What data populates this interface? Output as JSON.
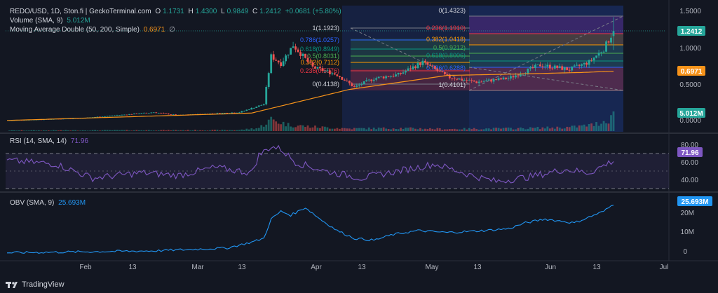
{
  "header": {
    "symbol": "REDO/USD, 1D, Ston.fi | GeckoTerminal.com",
    "open_label": "O",
    "open": "1.1731",
    "high_label": "H",
    "high": "1.4300",
    "low_label": "L",
    "low": "0.9849",
    "close_label": "C",
    "close": "1.2412",
    "change": "+0.0681 (+5.80%)"
  },
  "indicators": {
    "volume": {
      "label": "Volume (SMA, 9)",
      "value": "5.012M"
    },
    "ma": {
      "label": "Moving Average Double (50, 200, Simple)",
      "value": "0.6971",
      "suffix": "∅"
    },
    "rsi": {
      "label": "RSI (14, SMA, 14)",
      "value": "71.96"
    },
    "obv": {
      "label": "OBV (SMA, 9)",
      "value": "25.693M"
    }
  },
  "price_axis": {
    "ticks": [
      "1.5000",
      "1.0000",
      "0.5000",
      "0.0000"
    ],
    "last_price": "1.2412",
    "ma_value": "0.6971",
    "volume_badge": "5.012M"
  },
  "rsi_axis": {
    "ticks": [
      "80.00",
      "60.00",
      "40.00"
    ],
    "value": "71.96"
  },
  "obv_axis": {
    "ticks": [
      "20M",
      "10M",
      "0"
    ],
    "value": "25.693M"
  },
  "time_axis": [
    "Feb",
    "13",
    "Mar",
    "13",
    "Apr",
    "13",
    "May",
    "13",
    "Jun",
    "13",
    "Jul"
  ],
  "fib_left": {
    "levels": [
      "1(1.1923)",
      "0.786(1.0257)",
      "0.618(0.8949)",
      "0.5(0.8031)",
      "0.382(0.7112)",
      "0.236(0.5976)",
      "0(0.4138)"
    ]
  },
  "fib_right": {
    "levels": [
      "0(1.4323)",
      "0.236(1.1910)",
      "0.382(1.0418)",
      "0.5(0.9212)",
      "0.618(0.8006)",
      "0.786(0.6288)",
      "1(0.4101)"
    ]
  },
  "brand": "TradingView",
  "colors": {
    "bg": "#131722",
    "up": "#26a69a",
    "down": "#ef5350",
    "ma": "#f7931a",
    "rsi": "#7e57c2",
    "obv": "#2196f3",
    "fib_red": "#f23645",
    "fib_orange": "#ff9800",
    "fib_green": "#4caf50",
    "fib_teal": "#089981",
    "fib_gray": "#787b86",
    "fib_blue": "#2962ff"
  },
  "chart_data": {
    "type": "candlestick",
    "title": "REDO/USD, 1D, Ston.fi | GeckoTerminal.com",
    "x_range": [
      "2024-01-20",
      "2024-06-20"
    ],
    "last_candle": {
      "open": 1.1731,
      "high": 1.43,
      "low": 0.9849,
      "close": 1.2412
    },
    "price_ylim": [
      0,
      1.5
    ],
    "rsi_ylim": [
      30,
      90
    ],
    "obv_ylim": [
      0,
      30
    ],
    "obv_unit": "M",
    "price_anchors": [
      [
        0,
        0.03
      ],
      [
        30,
        0.06
      ],
      [
        45,
        0.1
      ],
      [
        60,
        0.14
      ],
      [
        70,
        0.1
      ],
      [
        82,
        0.12
      ],
      [
        95,
        0.14
      ],
      [
        105,
        0.25
      ],
      [
        108,
        0.9
      ],
      [
        112,
        0.8
      ],
      [
        117,
        1.05
      ],
      [
        125,
        0.75
      ],
      [
        135,
        0.65
      ],
      [
        142,
        0.48
      ],
      [
        150,
        0.6
      ],
      [
        160,
        0.65
      ],
      [
        170,
        0.82
      ],
      [
        180,
        0.62
      ],
      [
        192,
        0.55
      ],
      [
        205,
        0.6
      ],
      [
        218,
        0.78
      ],
      [
        230,
        0.72
      ],
      [
        238,
        0.82
      ],
      [
        244,
        1.0
      ],
      [
        248,
        1.24
      ]
    ],
    "ma50": [
      [
        0,
        0.03
      ],
      [
        60,
        0.09
      ],
      [
        100,
        0.13
      ],
      [
        140,
        0.45
      ],
      [
        180,
        0.64
      ],
      [
        210,
        0.66
      ],
      [
        235,
        0.68
      ],
      [
        248,
        0.6971
      ]
    ],
    "rsi_anchors": [
      [
        0,
        72
      ],
      [
        20,
        68
      ],
      [
        35,
        52
      ],
      [
        55,
        58
      ],
      [
        70,
        55
      ],
      [
        85,
        64
      ],
      [
        100,
        58
      ],
      [
        103,
        78
      ],
      [
        108,
        88
      ],
      [
        112,
        85
      ],
      [
        118,
        70
      ],
      [
        130,
        60
      ],
      [
        145,
        52
      ],
      [
        160,
        60
      ],
      [
        175,
        68
      ],
      [
        190,
        55
      ],
      [
        200,
        48
      ],
      [
        215,
        54
      ],
      [
        228,
        62
      ],
      [
        238,
        58
      ],
      [
        248,
        71.96
      ]
    ],
    "obv_anchors": [
      [
        0,
        0.5
      ],
      [
        60,
        1.5
      ],
      [
        90,
        3
      ],
      [
        100,
        6
      ],
      [
        105,
        8
      ],
      [
        108,
        18
      ],
      [
        112,
        22
      ],
      [
        116,
        20
      ],
      [
        122,
        24
      ],
      [
        128,
        18
      ],
      [
        135,
        12
      ],
      [
        142,
        8
      ],
      [
        150,
        7
      ],
      [
        158,
        10
      ],
      [
        168,
        12
      ],
      [
        180,
        11
      ],
      [
        195,
        12
      ],
      [
        205,
        13
      ],
      [
        212,
        16
      ],
      [
        220,
        18
      ],
      [
        232,
        16
      ],
      [
        238,
        19
      ],
      [
        244,
        22
      ],
      [
        248,
        25.693
      ]
    ],
    "volume_anchors": [
      [
        0,
        0.3
      ],
      [
        95,
        0.5
      ],
      [
        103,
        1.5
      ],
      [
        108,
        5.5
      ],
      [
        115,
        3
      ],
      [
        125,
        2
      ],
      [
        140,
        1.2
      ],
      [
        160,
        1.4
      ],
      [
        180,
        1.0
      ],
      [
        210,
        1.3
      ],
      [
        230,
        1.8
      ],
      [
        240,
        3
      ],
      [
        246,
        5.5
      ],
      [
        248,
        9.5
      ]
    ]
  }
}
